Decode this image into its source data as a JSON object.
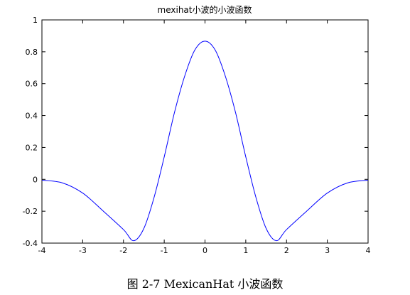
{
  "chart_data": {
    "type": "line",
    "title": "mexihat小波的小波函数",
    "xlabel": "",
    "ylabel": "",
    "xlim": [
      -4,
      4
    ],
    "ylim": [
      -0.4,
      1
    ],
    "x_ticks": [
      -4,
      -3,
      -2,
      -1,
      0,
      1,
      2,
      3,
      4
    ],
    "y_ticks": [
      -0.4,
      -0.2,
      0,
      0.2,
      0.4,
      0.6,
      0.8,
      1
    ],
    "x_tick_labels": [
      "-4",
      "-3",
      "-2",
      "-1",
      "0",
      "1",
      "2",
      "3",
      "4"
    ],
    "y_tick_labels": [
      "-0.4",
      "-0.2",
      "0",
      "0.2",
      "0.4",
      "0.6",
      "0.8",
      "1"
    ],
    "grid": false,
    "line_color": "#0000ff",
    "series": [
      {
        "x": [
          -4.0,
          -3.5,
          -3.0,
          -2.5,
          -2.0,
          -1.75,
          -1.5,
          -1.25,
          -1.0,
          -0.75,
          -0.5,
          -0.25,
          0.0,
          0.25,
          0.5,
          0.75,
          1.0,
          1.25,
          1.5,
          1.75,
          2.0,
          2.5,
          3.0,
          3.5,
          4.0
        ],
        "y": [
          -0.005,
          -0.022,
          -0.086,
          -0.198,
          -0.315,
          -0.385,
          -0.308,
          -0.114,
          0.141,
          0.418,
          0.646,
          0.811,
          0.867,
          0.811,
          0.646,
          0.418,
          0.141,
          -0.114,
          -0.308,
          -0.385,
          -0.315,
          -0.198,
          -0.086,
          -0.022,
          -0.005
        ]
      }
    ]
  },
  "caption": "图 2-7 MexicanHat 小波函数"
}
